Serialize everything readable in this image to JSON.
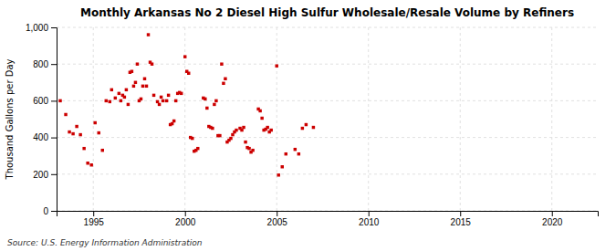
{
  "chart_data": {
    "type": "scatter",
    "title": "Monthly Arkansas No 2 Diesel High Sulfur Wholesale/Resale Volume by Refiners",
    "ylabel": "Thousand Gallons per Day",
    "source": "Source: U.S. Energy Information Administration",
    "color": "#cc0000",
    "marker": "square",
    "grid": true,
    "xlim": [
      1993.0,
      2022.5
    ],
    "ylim": [
      0,
      1000
    ],
    "xticks": [
      1995,
      2000,
      2005,
      2010,
      2015,
      2020
    ],
    "yticks": [
      0,
      200,
      400,
      600,
      800,
      {
        "value": 1000,
        "label": "1,000"
      }
    ],
    "x": [
      1993.2,
      1993.5,
      1993.7,
      1993.9,
      1994.1,
      1994.3,
      1994.5,
      1994.7,
      1994.9,
      1995.1,
      1995.3,
      1995.5,
      1995.7,
      1995.9,
      1996.0,
      1996.2,
      1996.4,
      1996.5,
      1996.6,
      1996.7,
      1996.8,
      1996.9,
      1997.0,
      1997.1,
      1997.2,
      1997.3,
      1997.4,
      1997.5,
      1997.6,
      1997.7,
      1997.8,
      1997.9,
      1998.0,
      1998.1,
      1998.2,
      1998.3,
      1998.5,
      1998.6,
      1998.7,
      1998.8,
      1999.0,
      1999.1,
      1999.2,
      1999.3,
      1999.4,
      1999.5,
      1999.6,
      1999.7,
      1999.8,
      2000.0,
      2000.1,
      2000.2,
      2000.3,
      2000.4,
      2000.5,
      2000.6,
      2000.7,
      2001.0,
      2001.1,
      2001.2,
      2001.3,
      2001.4,
      2001.5,
      2001.6,
      2001.7,
      2001.8,
      2001.9,
      2002.0,
      2002.1,
      2002.2,
      2002.3,
      2002.4,
      2002.5,
      2002.6,
      2002.7,
      2002.8,
      2003.0,
      2003.1,
      2003.2,
      2003.3,
      2003.4,
      2003.5,
      2003.6,
      2003.7,
      2004.0,
      2004.1,
      2004.2,
      2004.3,
      2004.4,
      2004.5,
      2004.6,
      2004.7,
      2005.0,
      2005.1,
      2005.3,
      2005.5,
      2006.0,
      2006.2,
      2006.4,
      2006.6,
      2007.0
    ],
    "values": [
      600,
      525,
      430,
      420,
      460,
      415,
      340,
      260,
      250,
      480,
      425,
      330,
      600,
      595,
      660,
      615,
      640,
      600,
      630,
      620,
      660,
      580,
      755,
      760,
      680,
      700,
      800,
      600,
      610,
      680,
      720,
      680,
      960,
      810,
      800,
      630,
      595,
      580,
      620,
      600,
      600,
      630,
      470,
      475,
      490,
      600,
      640,
      645,
      640,
      840,
      760,
      750,
      400,
      395,
      325,
      330,
      340,
      615,
      610,
      560,
      460,
      455,
      450,
      580,
      600,
      410,
      410,
      800,
      695,
      720,
      375,
      385,
      395,
      415,
      430,
      440,
      450,
      440,
      455,
      375,
      345,
      340,
      320,
      330,
      555,
      545,
      505,
      440,
      445,
      455,
      430,
      440,
      790,
      195,
      240,
      310,
      335,
      310,
      450,
      470,
      455
    ]
  }
}
